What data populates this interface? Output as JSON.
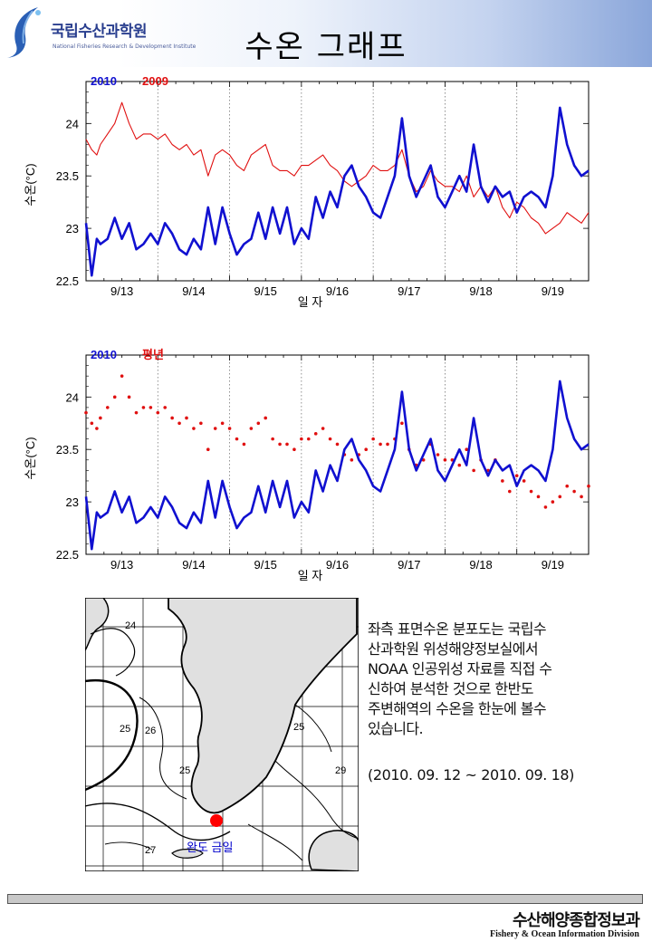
{
  "header": {
    "org_name": "국립수산과학원",
    "org_sub": "National Fisheries Research & Development Institute",
    "title": "수온 그래프"
  },
  "chart_data": [
    {
      "type": "line",
      "title": "",
      "xlabel": "일 자",
      "ylabel": "수온(°C)",
      "xlim": [
        0,
        7
      ],
      "ylim": [
        22.5,
        24.4
      ],
      "yticks": [
        22.5,
        23,
        23.5,
        24
      ],
      "categories": [
        "9/13",
        "9/14",
        "9/15",
        "9/16",
        "9/17",
        "9/18",
        "9/19"
      ],
      "legend": [
        "2010",
        "2009"
      ],
      "series": [
        {
          "name": "2010",
          "color": "#1010d0",
          "style": "thick-line",
          "x": [
            0,
            0.08,
            0.15,
            0.2,
            0.3,
            0.4,
            0.5,
            0.6,
            0.7,
            0.8,
            0.9,
            1.0,
            1.1,
            1.2,
            1.3,
            1.4,
            1.5,
            1.6,
            1.7,
            1.8,
            1.9,
            2.0,
            2.1,
            2.2,
            2.3,
            2.4,
            2.5,
            2.6,
            2.7,
            2.8,
            2.9,
            3.0,
            3.1,
            3.2,
            3.3,
            3.4,
            3.5,
            3.6,
            3.7,
            3.8,
            3.9,
            4.0,
            4.1,
            4.2,
            4.3,
            4.4,
            4.5,
            4.6,
            4.7,
            4.8,
            4.9,
            5.0,
            5.1,
            5.2,
            5.3,
            5.4,
            5.5,
            5.6,
            5.7,
            5.8,
            5.9,
            6.0,
            6.1,
            6.2,
            6.3,
            6.4,
            6.5,
            6.6,
            6.7,
            6.8,
            6.9,
            7.0
          ],
          "y": [
            23.05,
            22.55,
            22.9,
            22.85,
            22.9,
            23.1,
            22.9,
            23.05,
            22.8,
            22.85,
            22.95,
            22.85,
            23.05,
            22.95,
            22.8,
            22.75,
            22.9,
            22.8,
            23.2,
            22.85,
            23.2,
            22.95,
            22.75,
            22.85,
            22.9,
            23.15,
            22.9,
            23.2,
            22.95,
            23.2,
            22.85,
            23.0,
            22.9,
            23.3,
            23.1,
            23.35,
            23.2,
            23.5,
            23.6,
            23.4,
            23.3,
            23.15,
            23.1,
            23.3,
            23.5,
            24.05,
            23.5,
            23.3,
            23.45,
            23.6,
            23.3,
            23.2,
            23.35,
            23.5,
            23.35,
            23.8,
            23.4,
            23.25,
            23.4,
            23.3,
            23.35,
            23.15,
            23.3,
            23.35,
            23.3,
            23.2,
            23.5,
            24.15,
            23.8,
            23.6,
            23.5,
            23.55
          ]
        },
        {
          "name": "2009",
          "color": "#e01010",
          "style": "thin-line",
          "x": [
            0,
            0.08,
            0.15,
            0.2,
            0.3,
            0.4,
            0.5,
            0.6,
            0.7,
            0.8,
            0.9,
            1.0,
            1.1,
            1.2,
            1.3,
            1.4,
            1.5,
            1.6,
            1.7,
            1.8,
            1.9,
            2.0,
            2.1,
            2.2,
            2.3,
            2.4,
            2.5,
            2.6,
            2.7,
            2.8,
            2.9,
            3.0,
            3.1,
            3.2,
            3.3,
            3.4,
            3.5,
            3.6,
            3.7,
            3.8,
            3.9,
            4.0,
            4.1,
            4.2,
            4.3,
            4.4,
            4.5,
            4.6,
            4.7,
            4.8,
            4.9,
            5.0,
            5.1,
            5.2,
            5.3,
            5.4,
            5.5,
            5.6,
            5.7,
            5.8,
            5.9,
            6.0,
            6.1,
            6.2,
            6.3,
            6.4,
            6.5,
            6.6,
            6.7,
            6.8,
            6.9,
            7.0
          ],
          "y": [
            23.85,
            23.75,
            23.7,
            23.8,
            23.9,
            24.0,
            24.2,
            24.0,
            23.85,
            23.9,
            23.9,
            23.85,
            23.9,
            23.8,
            23.75,
            23.8,
            23.7,
            23.75,
            23.5,
            23.7,
            23.75,
            23.7,
            23.6,
            23.55,
            23.7,
            23.75,
            23.8,
            23.6,
            23.55,
            23.55,
            23.5,
            23.6,
            23.6,
            23.65,
            23.7,
            23.6,
            23.55,
            23.45,
            23.4,
            23.45,
            23.5,
            23.6,
            23.55,
            23.55,
            23.6,
            23.75,
            23.5,
            23.35,
            23.4,
            23.55,
            23.45,
            23.4,
            23.4,
            23.35,
            23.5,
            23.3,
            23.4,
            23.3,
            23.4,
            23.2,
            23.1,
            23.25,
            23.2,
            23.1,
            23.05,
            22.95,
            23.0,
            23.05,
            23.15,
            23.1,
            23.05,
            23.15
          ]
        }
      ]
    },
    {
      "type": "line",
      "title": "",
      "xlabel": "일 자",
      "ylabel": "수온(°C)",
      "xlim": [
        0,
        7
      ],
      "ylim": [
        22.5,
        24.4
      ],
      "yticks": [
        22.5,
        23,
        23.5,
        24
      ],
      "categories": [
        "9/13",
        "9/14",
        "9/15",
        "9/16",
        "9/17",
        "9/18",
        "9/19"
      ],
      "legend": [
        "2010",
        "평년"
      ],
      "series": [
        {
          "name": "2010",
          "color": "#1010d0",
          "style": "thick-line",
          "x": [
            0,
            0.08,
            0.15,
            0.2,
            0.3,
            0.4,
            0.5,
            0.6,
            0.7,
            0.8,
            0.9,
            1.0,
            1.1,
            1.2,
            1.3,
            1.4,
            1.5,
            1.6,
            1.7,
            1.8,
            1.9,
            2.0,
            2.1,
            2.2,
            2.3,
            2.4,
            2.5,
            2.6,
            2.7,
            2.8,
            2.9,
            3.0,
            3.1,
            3.2,
            3.3,
            3.4,
            3.5,
            3.6,
            3.7,
            3.8,
            3.9,
            4.0,
            4.1,
            4.2,
            4.3,
            4.4,
            4.5,
            4.6,
            4.7,
            4.8,
            4.9,
            5.0,
            5.1,
            5.2,
            5.3,
            5.4,
            5.5,
            5.6,
            5.7,
            5.8,
            5.9,
            6.0,
            6.1,
            6.2,
            6.3,
            6.4,
            6.5,
            6.6,
            6.7,
            6.8,
            6.9,
            7.0
          ],
          "y": [
            23.05,
            22.55,
            22.9,
            22.85,
            22.9,
            23.1,
            22.9,
            23.05,
            22.8,
            22.85,
            22.95,
            22.85,
            23.05,
            22.95,
            22.8,
            22.75,
            22.9,
            22.8,
            23.2,
            22.85,
            23.2,
            22.95,
            22.75,
            22.85,
            22.9,
            23.15,
            22.9,
            23.2,
            22.95,
            23.2,
            22.85,
            23.0,
            22.9,
            23.3,
            23.1,
            23.35,
            23.2,
            23.5,
            23.6,
            23.4,
            23.3,
            23.15,
            23.1,
            23.3,
            23.5,
            24.05,
            23.5,
            23.3,
            23.45,
            23.6,
            23.3,
            23.2,
            23.35,
            23.5,
            23.35,
            23.8,
            23.4,
            23.25,
            23.4,
            23.3,
            23.35,
            23.15,
            23.3,
            23.35,
            23.3,
            23.2,
            23.5,
            24.15,
            23.8,
            23.6,
            23.5,
            23.55
          ]
        },
        {
          "name": "평년",
          "color": "#e01010",
          "style": "dots",
          "x": [
            0,
            0.08,
            0.15,
            0.2,
            0.3,
            0.4,
            0.5,
            0.6,
            0.7,
            0.8,
            0.9,
            1.0,
            1.1,
            1.2,
            1.3,
            1.4,
            1.5,
            1.6,
            1.7,
            1.8,
            1.9,
            2.0,
            2.1,
            2.2,
            2.3,
            2.4,
            2.5,
            2.6,
            2.7,
            2.8,
            2.9,
            3.0,
            3.1,
            3.2,
            3.3,
            3.4,
            3.5,
            3.6,
            3.7,
            3.8,
            3.9,
            4.0,
            4.1,
            4.2,
            4.3,
            4.4,
            4.5,
            4.6,
            4.7,
            4.8,
            4.9,
            5.0,
            5.1,
            5.2,
            5.3,
            5.4,
            5.5,
            5.6,
            5.7,
            5.8,
            5.9,
            6.0,
            6.1,
            6.2,
            6.3,
            6.4,
            6.5,
            6.6,
            6.7,
            6.8,
            6.9,
            7.0
          ],
          "y": [
            23.85,
            23.75,
            23.7,
            23.8,
            23.9,
            24.0,
            24.2,
            24.0,
            23.85,
            23.9,
            23.9,
            23.85,
            23.9,
            23.8,
            23.75,
            23.8,
            23.7,
            23.75,
            23.5,
            23.7,
            23.75,
            23.7,
            23.6,
            23.55,
            23.7,
            23.75,
            23.8,
            23.6,
            23.55,
            23.55,
            23.5,
            23.6,
            23.6,
            23.65,
            23.7,
            23.6,
            23.55,
            23.45,
            23.4,
            23.45,
            23.5,
            23.6,
            23.55,
            23.55,
            23.6,
            23.75,
            23.5,
            23.35,
            23.4,
            23.55,
            23.45,
            23.4,
            23.4,
            23.35,
            23.5,
            23.3,
            23.4,
            23.3,
            23.4,
            23.2,
            23.1,
            23.25,
            23.2,
            23.1,
            23.05,
            22.95,
            23.0,
            23.05,
            23.15,
            23.1,
            23.05,
            23.15
          ]
        }
      ]
    }
  ],
  "map": {
    "contour_labels": [
      "24",
      "25",
      "26",
      "25",
      "25",
      "29",
      "27"
    ],
    "station_label": "완도 금일",
    "station_color": "#ff0000"
  },
  "description": {
    "lines": [
      "좌측 표면수온 분포도는 국립수",
      "산과학원 위성해양정보실에서",
      "NOAA 인공위성 자료를 직접 수",
      "신하여 분석한 것으로 한반도",
      "주변해역의 수온을 한눈에 볼수",
      "있습니다."
    ],
    "period": "(2010. 09. 12 ~ 2010. 09. 18)"
  },
  "footer": {
    "division_ko": "수산해양종합정보과",
    "division_en": "Fishery & Ocean Information Division"
  }
}
